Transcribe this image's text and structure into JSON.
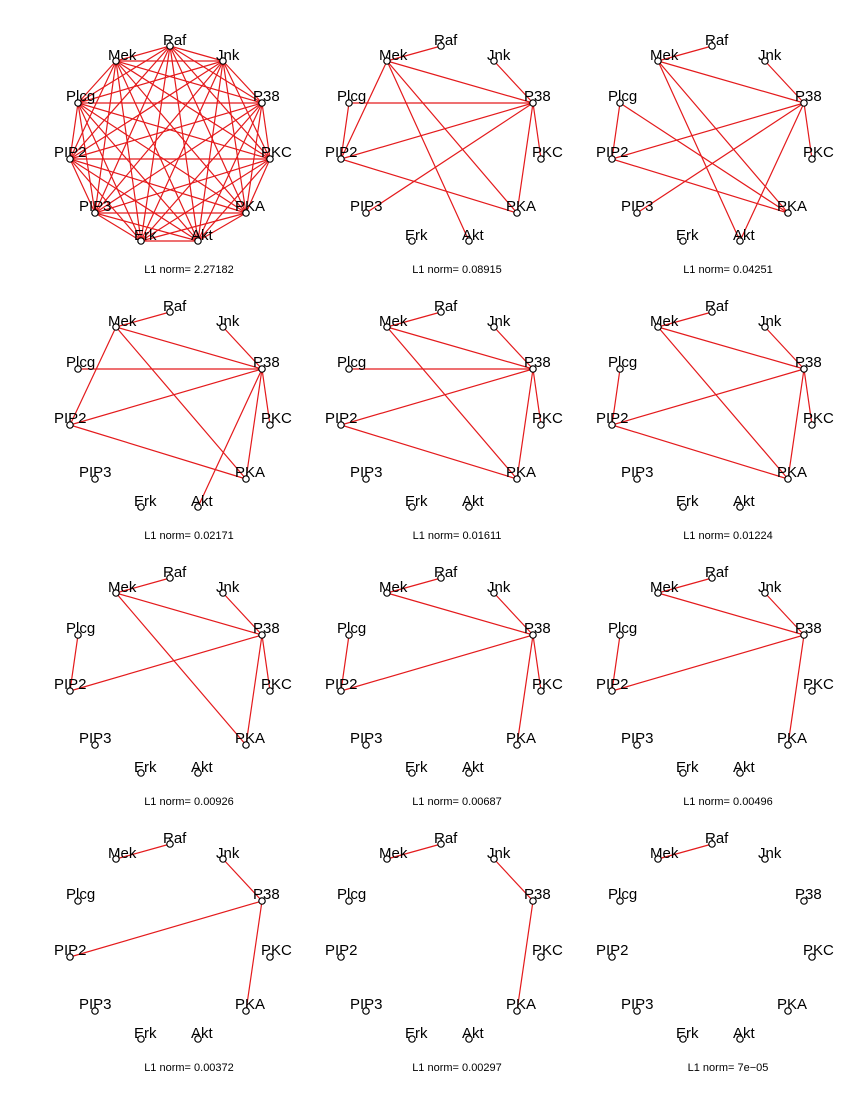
{
  "figure": {
    "node_names": [
      "Raf",
      "Mek",
      "Plcg",
      "PIP2",
      "PIP3",
      "Erk",
      "Akt",
      "PKA",
      "PKC",
      "P38",
      "Jnk"
    ],
    "colors": {
      "edge": "#e41a1c",
      "node_stroke": "#000000",
      "node_fill": "#ffffff",
      "text": "#000000"
    },
    "panels": [
      {
        "caption": "L1 norm= 2.27182",
        "complete": true,
        "edges": []
      },
      {
        "caption": "L1 norm= 0.08915",
        "complete": false,
        "edges": [
          [
            "Raf",
            "Mek"
          ],
          [
            "Mek",
            "P38"
          ],
          [
            "Mek",
            "PIP2"
          ],
          [
            "Mek",
            "PKA"
          ],
          [
            "Mek",
            "Akt"
          ],
          [
            "Plcg",
            "P38"
          ],
          [
            "Plcg",
            "PIP2"
          ],
          [
            "PIP2",
            "P38"
          ],
          [
            "PIP2",
            "PKA"
          ],
          [
            "P38",
            "PIP3"
          ],
          [
            "P38",
            "Jnk"
          ],
          [
            "P38",
            "PKC"
          ],
          [
            "P38",
            "PKA"
          ]
        ]
      },
      {
        "caption": "L1 norm= 0.04251",
        "complete": false,
        "edges": [
          [
            "Raf",
            "Mek"
          ],
          [
            "Mek",
            "P38"
          ],
          [
            "Mek",
            "PKA"
          ],
          [
            "Mek",
            "Akt"
          ],
          [
            "Plcg",
            "PIP2"
          ],
          [
            "Plcg",
            "PKA"
          ],
          [
            "PIP2",
            "P38"
          ],
          [
            "PIP2",
            "PKA"
          ],
          [
            "P38",
            "PIP3"
          ],
          [
            "P38",
            "Jnk"
          ],
          [
            "P38",
            "PKC"
          ],
          [
            "P38",
            "Akt"
          ]
        ]
      },
      {
        "caption": "L1 norm= 0.02171",
        "complete": false,
        "edges": [
          [
            "Raf",
            "Mek"
          ],
          [
            "Mek",
            "P38"
          ],
          [
            "Mek",
            "PKA"
          ],
          [
            "Mek",
            "PIP2"
          ],
          [
            "Plcg",
            "P38"
          ],
          [
            "PIP2",
            "P38"
          ],
          [
            "PIP2",
            "PKA"
          ],
          [
            "P38",
            "Jnk"
          ],
          [
            "P38",
            "PKC"
          ],
          [
            "P38",
            "PKA"
          ],
          [
            "P38",
            "Akt"
          ]
        ]
      },
      {
        "caption": "L1 norm= 0.01611",
        "complete": false,
        "edges": [
          [
            "Raf",
            "Mek"
          ],
          [
            "Mek",
            "P38"
          ],
          [
            "Mek",
            "PKA"
          ],
          [
            "Plcg",
            "P38"
          ],
          [
            "PIP2",
            "P38"
          ],
          [
            "PIP2",
            "PKA"
          ],
          [
            "P38",
            "Jnk"
          ],
          [
            "P38",
            "PKC"
          ],
          [
            "P38",
            "PKA"
          ]
        ]
      },
      {
        "caption": "L1 norm= 0.01224",
        "complete": false,
        "edges": [
          [
            "Raf",
            "Mek"
          ],
          [
            "Mek",
            "P38"
          ],
          [
            "Mek",
            "PKA"
          ],
          [
            "Plcg",
            "PIP2"
          ],
          [
            "PIP2",
            "P38"
          ],
          [
            "PIP2",
            "PKA"
          ],
          [
            "P38",
            "Jnk"
          ],
          [
            "P38",
            "PKC"
          ],
          [
            "P38",
            "PKA"
          ]
        ]
      },
      {
        "caption": "L1 norm= 0.00926",
        "complete": false,
        "edges": [
          [
            "Raf",
            "Mek"
          ],
          [
            "Mek",
            "P38"
          ],
          [
            "Mek",
            "PKA"
          ],
          [
            "Plcg",
            "PIP2"
          ],
          [
            "PIP2",
            "P38"
          ],
          [
            "P38",
            "Jnk"
          ],
          [
            "P38",
            "PKC"
          ],
          [
            "P38",
            "PKA"
          ]
        ]
      },
      {
        "caption": "L1 norm= 0.00687",
        "complete": false,
        "edges": [
          [
            "Raf",
            "Mek"
          ],
          [
            "Mek",
            "P38"
          ],
          [
            "Plcg",
            "PIP2"
          ],
          [
            "PIP2",
            "P38"
          ],
          [
            "P38",
            "Jnk"
          ],
          [
            "P38",
            "PKC"
          ],
          [
            "P38",
            "PKA"
          ]
        ]
      },
      {
        "caption": "L1 norm= 0.00496",
        "complete": false,
        "edges": [
          [
            "Raf",
            "Mek"
          ],
          [
            "Mek",
            "P38"
          ],
          [
            "Plcg",
            "PIP2"
          ],
          [
            "PIP2",
            "P38"
          ],
          [
            "P38",
            "Jnk"
          ],
          [
            "P38",
            "PKA"
          ]
        ]
      },
      {
        "caption": "L1 norm= 0.00372",
        "complete": false,
        "edges": [
          [
            "Raf",
            "Mek"
          ],
          [
            "PIP2",
            "P38"
          ],
          [
            "P38",
            "Jnk"
          ],
          [
            "P38",
            "PKA"
          ]
        ]
      },
      {
        "caption": "L1 norm= 0.00297",
        "complete": false,
        "edges": [
          [
            "Raf",
            "Mek"
          ],
          [
            "P38",
            "Jnk"
          ],
          [
            "P38",
            "PKA"
          ]
        ]
      },
      {
        "caption": "L1 norm= 7e−05",
        "complete": false,
        "edges": [
          [
            "Raf",
            "Mek"
          ]
        ]
      }
    ]
  }
}
